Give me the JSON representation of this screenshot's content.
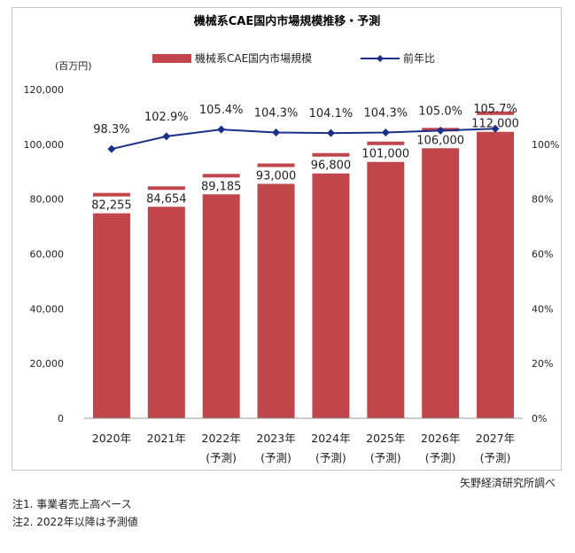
{
  "chart_data": {
    "type": "bar",
    "title": "機械系CAE国内市場規模推移・予測",
    "y_unit": "(百万円)",
    "categories": [
      [
        "2020年",
        ""
      ],
      [
        "2021年",
        ""
      ],
      [
        "2022年",
        "(予測)"
      ],
      [
        "2023年",
        "(予測)"
      ],
      [
        "2024年",
        "(予測)"
      ],
      [
        "2025年",
        "(予測)"
      ],
      [
        "2026年",
        "(予測)"
      ],
      [
        "2027年",
        "(予測)"
      ]
    ],
    "series": [
      {
        "name": "機械系CAE国内市場規模",
        "type": "bar",
        "axis": "left",
        "color": "#c0464c",
        "values": [
          82255,
          84654,
          89185,
          93000,
          96800,
          101000,
          106000,
          112000
        ],
        "labels": [
          "82,255",
          "84,654",
          "89,185",
          "93,000",
          "96,800",
          "101,000",
          "106,000",
          "112,000"
        ]
      },
      {
        "name": "前年比",
        "type": "line",
        "axis": "right",
        "color": "#1a2f8a",
        "values": [
          98.3,
          102.9,
          105.4,
          104.3,
          104.1,
          104.3,
          105.0,
          105.7
        ],
        "labels": [
          "98.3%",
          "102.9%",
          "105.4%",
          "104.3%",
          "104.1%",
          "104.3%",
          "105.0%",
          "105.7%"
        ]
      }
    ],
    "y_left": {
      "range": [
        0,
        120000
      ],
      "ticks": [
        0,
        20000,
        40000,
        60000,
        80000,
        100000,
        120000
      ],
      "tick_labels": [
        "0",
        "20,000",
        "40,000",
        "60,000",
        "80,000",
        "100,000",
        "120,000"
      ]
    },
    "y_right": {
      "range": [
        0,
        120
      ],
      "ticks": [
        0,
        20,
        40,
        60,
        80,
        100
      ],
      "tick_labels": [
        "0%",
        "20%",
        "40%",
        "60%",
        "80%",
        "100%"
      ]
    },
    "grid": false,
    "legend_position": "top"
  },
  "source": "矢野経済研究所調べ",
  "notes": [
    "注1. 事業者売上高ベース",
    "注2. 2022年以降は予測値"
  ]
}
